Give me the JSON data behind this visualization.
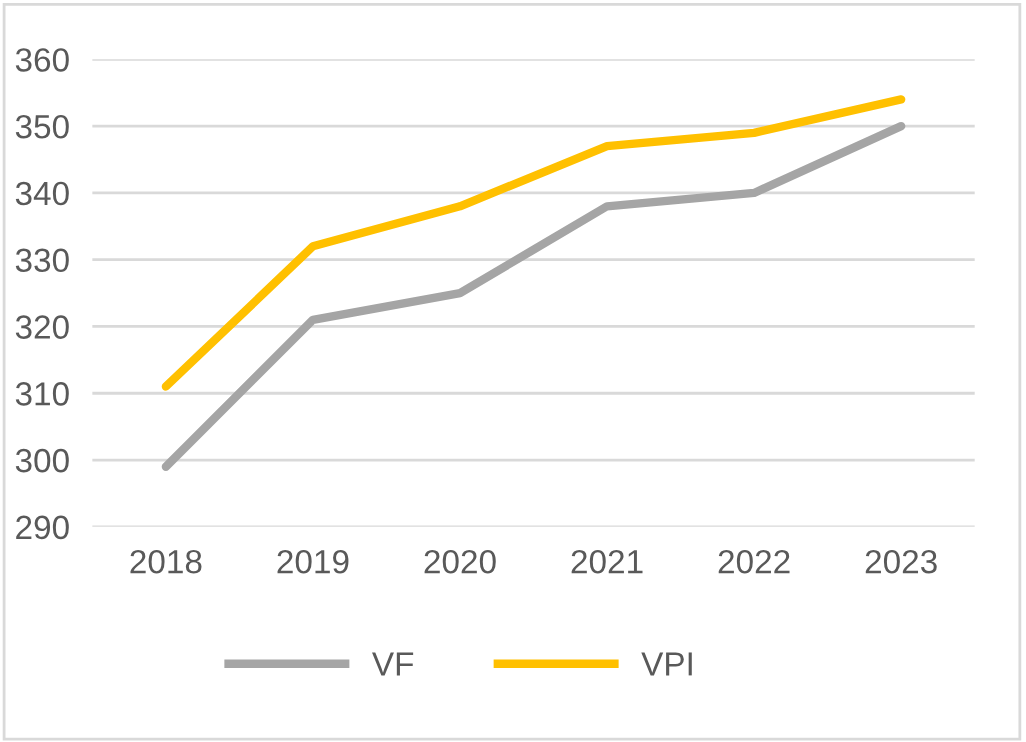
{
  "chart_data": {
    "type": "line",
    "categories": [
      "2018",
      "2019",
      "2020",
      "2021",
      "2022",
      "2023"
    ],
    "series": [
      {
        "name": "VF",
        "color": "#a5a5a5",
        "values": [
          299,
          321,
          325,
          338,
          340,
          350
        ]
      },
      {
        "name": "VPI",
        "color": "#ffc000",
        "values": [
          311,
          332,
          338,
          347,
          349,
          354
        ]
      }
    ],
    "ylim": [
      290,
      360
    ],
    "yticks": [
      290,
      300,
      310,
      320,
      330,
      340,
      350,
      360
    ],
    "grid": "y",
    "legend": "bottom",
    "marker": "none",
    "line_style": "solid"
  }
}
